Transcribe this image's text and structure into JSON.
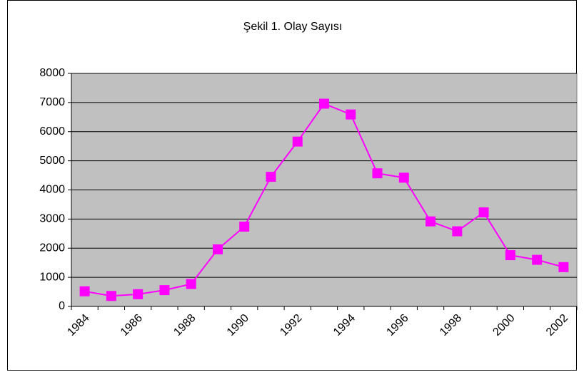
{
  "chart_data": {
    "type": "line",
    "title": "Şekil 1. Olay Sayısı",
    "categories": [
      "1984",
      null,
      "1986",
      null,
      "1988",
      null,
      "1990",
      null,
      "1992",
      null,
      "1994",
      null,
      "1996",
      null,
      "1998",
      null,
      "2000",
      null,
      "2002"
    ],
    "series": [
      {
        "name": "Olay Sayısı",
        "color": "#ff00ff",
        "values": [
          520,
          360,
          420,
          560,
          770,
          1960,
          2740,
          4450,
          5660,
          6960,
          6590,
          4570,
          4420,
          2920,
          2580,
          3230,
          1760,
          1600,
          1350
        ]
      }
    ],
    "ylim": [
      0,
      8000
    ],
    "yticks": [
      0,
      1000,
      2000,
      3000,
      4000,
      5000,
      6000,
      7000,
      8000
    ],
    "grid": true,
    "plot_background": "#c0c0c0"
  }
}
